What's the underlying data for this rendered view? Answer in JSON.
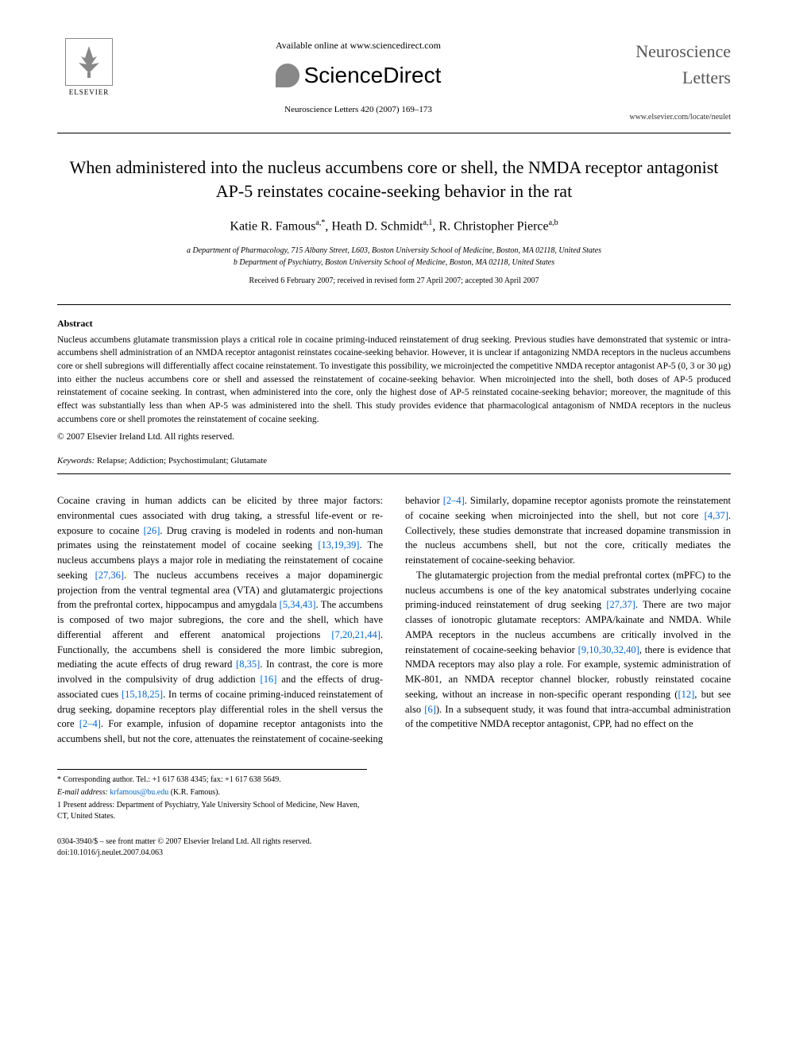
{
  "header": {
    "publisher_name": "ELSEVIER",
    "available_text": "Available online at www.sciencedirect.com",
    "sciencedirect_label": "ScienceDirect",
    "journal_ref": "Neuroscience Letters 420 (2007) 169–173",
    "journal_title": "Neuroscience Letters",
    "journal_url": "www.elsevier.com/locate/neulet"
  },
  "title": "When administered into the nucleus accumbens core or shell, the NMDA receptor antagonist AP-5 reinstates cocaine-seeking behavior in the rat",
  "authors_html": "Katie R. Famous",
  "author_list": [
    {
      "name": "Katie R. Famous",
      "marks": "a,*"
    },
    {
      "name": "Heath D. Schmidt",
      "marks": "a,1"
    },
    {
      "name": "R. Christopher Pierce",
      "marks": "a,b"
    }
  ],
  "affiliations": [
    "a Department of Pharmacology, 715 Albany Street, L603, Boston University School of Medicine, Boston, MA 02118, United States",
    "b Department of Psychiatry, Boston University School of Medicine, Boston, MA 02118, United States"
  ],
  "received": "Received 6 February 2007; received in revised form 27 April 2007; accepted 30 April 2007",
  "abstract_heading": "Abstract",
  "abstract": "Nucleus accumbens glutamate transmission plays a critical role in cocaine priming-induced reinstatement of drug seeking. Previous studies have demonstrated that systemic or intra-accumbens shell administration of an NMDA receptor antagonist reinstates cocaine-seeking behavior. However, it is unclear if antagonizing NMDA receptors in the nucleus accumbens core or shell subregions will differentially affect cocaine reinstatement. To investigate this possibility, we microinjected the competitive NMDA receptor antagonist AP-5 (0, 3 or 30 μg) into either the nucleus accumbens core or shell and assessed the reinstatement of cocaine-seeking behavior. When microinjected into the shell, both doses of AP-5 produced reinstatement of cocaine seeking. In contrast, when administered into the core, only the highest dose of AP-5 reinstated cocaine-seeking behavior; moreover, the magnitude of this effect was substantially less than when AP-5 was administered into the shell. This study provides evidence that pharmacological antagonism of NMDA receptors in the nucleus accumbens core or shell promotes the reinstatement of cocaine seeking.",
  "copyright": "© 2007 Elsevier Ireland Ltd. All rights reserved.",
  "keywords_label": "Keywords:",
  "keywords": "Relapse; Addiction; Psychostimulant; Glutamate",
  "body_paragraphs": [
    "Cocaine craving in human addicts can be elicited by three major factors: environmental cues associated with drug taking, a stressful life-event or re-exposure to cocaine [26]. Drug craving is modeled in rodents and non-human primates using the reinstatement model of cocaine seeking [13,19,39]. The nucleus accumbens plays a major role in mediating the reinstatement of cocaine seeking [27,36]. The nucleus accumbens receives a major dopaminergic projection from the ventral tegmental area (VTA) and glutamatergic projections from the prefrontal cortex, hippocampus and amygdala [5,34,43]. The accumbens is composed of two major subregions, the core and the shell, which have differential afferent and efferent anatomical projections [7,20,21,44]. Functionally, the accumbens shell is considered the more limbic subregion, mediating the acute effects of drug reward [8,35]. In contrast, the core is more involved in the compulsivity of drug addiction [16] and the effects of drug-associated cues [15,18,25]. In terms of cocaine priming-induced reinstatement of drug seeking, dopamine receptors play differential roles in the shell versus the core [2–4]. For example, infusion of dopamine receptor antagonists into the accumbens shell, but not the core, attenuates the reinstatement of cocaine-seeking behavior [2–4]. Similarly, dopamine receptor agonists promote the reinstatement of cocaine seeking when microinjected into the shell, but not core [4,37]. Collectively, these studies demonstrate that increased dopamine transmission in the nucleus accumbens shell, but not the core, critically mediates the reinstatement of cocaine-seeking behavior.",
    "The glutamatergic projection from the medial prefrontal cortex (mPFC) to the nucleus accumbens is one of the key anatomical substrates underlying cocaine priming-induced reinstatement of drug seeking [27,37]. There are two major classes of ionotropic glutamate receptors: AMPA/kainate and NMDA. While AMPA receptors in the nucleus accumbens are critically involved in the reinstatement of cocaine-seeking behavior [9,10,30,32,40], there is evidence that NMDA receptors may also play a role. For example, systemic administration of MK-801, an NMDA receptor channel blocker, robustly reinstated cocaine seeking, without an increase in non-specific operant responding ([12], but see also [6]). In a subsequent study, it was found that intra-accumbal administration of the competitive NMDA receptor antagonist, CPP, had no effect on the"
  ],
  "footnotes": {
    "corresponding": "* Corresponding author. Tel.: +1 617 638 4345; fax: +1 617 638 5649.",
    "email_label": "E-mail address:",
    "email": "krfamous@bu.edu",
    "email_person": "(K.R. Famous).",
    "present_address": "1 Present address: Department of Psychiatry, Yale University School of Medicine, New Haven, CT, United States."
  },
  "bottom": {
    "issn": "0304-3940/$ – see front matter © 2007 Elsevier Ireland Ltd. All rights reserved.",
    "doi": "doi:10.1016/j.neulet.2007.04.063"
  },
  "colors": {
    "link": "#0066cc",
    "text": "#000000",
    "muted": "#555555"
  }
}
